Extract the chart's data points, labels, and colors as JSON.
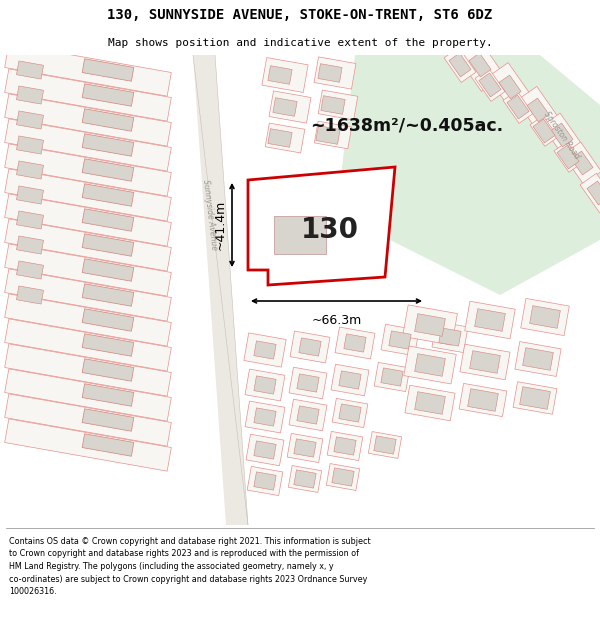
{
  "title": "130, SUNNYSIDE AVENUE, STOKE-ON-TRENT, ST6 6DZ",
  "subtitle": "Map shows position and indicative extent of the property.",
  "footer_text": "Contains OS data © Crown copyright and database right 2021. This information is subject to Crown copyright and database rights 2023 and is reproduced with the permission of HM Land Registry. The polygons (including the associated geometry, namely x, y co-ordinates) are subject to Crown copyright and database rights 2023 Ordnance Survey 100026316.",
  "area_label": "~1638m²/~0.405ac.",
  "number_label": "130",
  "width_label": "~66.3m",
  "height_label": "~41.4m",
  "map_bg": "#f8f6f3",
  "plot_fill": "#f8f6f3",
  "building_fill": "#d8d4ce",
  "building_outline": "#d4837a",
  "plot_outline": "#e8908a",
  "highlight_fill": "#ffffff",
  "highlight_outline": "#cc0000",
  "green_fill": "#ddeedd",
  "road_label_sunnyside": "Sunnyside Avenue",
  "road_label_sproston": "Sproston Road",
  "road_line_color": "#d4837a",
  "plot_line_color": "#e8908a"
}
